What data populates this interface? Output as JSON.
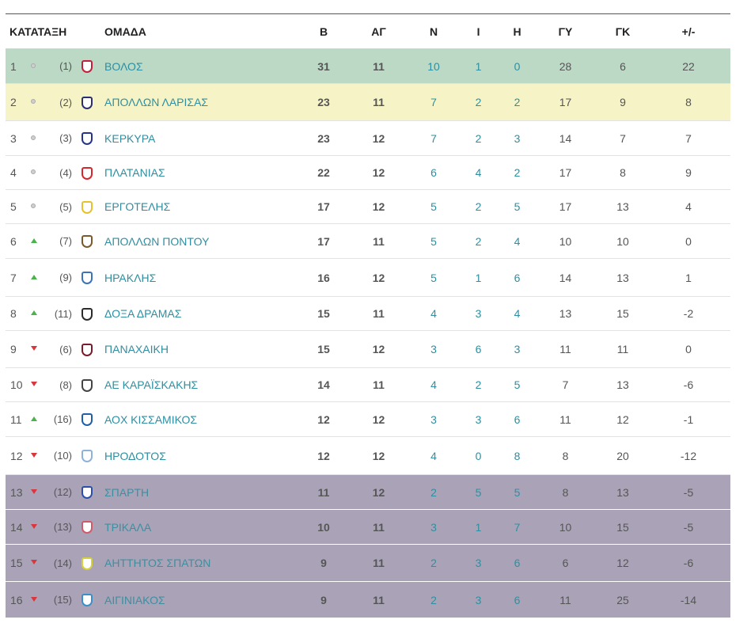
{
  "headers": {
    "rank": "ΚΑΤΑΤΑΞΗ",
    "team": "ΟΜΑΔΑ",
    "points": "Β",
    "played": "ΑΓ",
    "wins": "Ν",
    "draws": "Ι",
    "losses": "Η",
    "goals_for": "ΓΥ",
    "goals_against": "ΓΚ",
    "goal_diff": "+/-"
  },
  "rows": [
    {
      "pos": "1",
      "move": "same",
      "prev": "(1)",
      "crest": "#c21f3a",
      "team": "ΒΟΛΟΣ",
      "pts": "31",
      "pl": "11",
      "w": "10",
      "d": "1",
      "l": "0",
      "gf": "28",
      "ga": "6",
      "gd": "22",
      "zone": "promo"
    },
    {
      "pos": "2",
      "move": "same",
      "prev": "(2)",
      "crest": "#2a2f6e",
      "team": "ΑΠΟΛΛΩΝ ΛΑΡΙΣΑΣ",
      "pts": "23",
      "pl": "11",
      "w": "7",
      "d": "2",
      "l": "2",
      "gf": "17",
      "ga": "9",
      "gd": "8",
      "zone": "second"
    },
    {
      "pos": "3",
      "move": "same",
      "prev": "(3)",
      "crest": "#26338c",
      "team": "ΚΕΡΚΥΡΑ",
      "pts": "23",
      "pl": "12",
      "w": "7",
      "d": "2",
      "l": "3",
      "gf": "14",
      "ga": "7",
      "gd": "7",
      "zone": "none"
    },
    {
      "pos": "4",
      "move": "same",
      "prev": "(4)",
      "crest": "#d8262e",
      "team": "ΠΛΑΤΑΝΙΑΣ",
      "pts": "22",
      "pl": "12",
      "w": "6",
      "d": "4",
      "l": "2",
      "gf": "17",
      "ga": "8",
      "gd": "9",
      "zone": "none"
    },
    {
      "pos": "5",
      "move": "same",
      "prev": "(5)",
      "crest": "#e6c22a",
      "team": "ΕΡΓΟΤΕΛΗΣ",
      "pts": "17",
      "pl": "12",
      "w": "5",
      "d": "2",
      "l": "5",
      "gf": "17",
      "ga": "13",
      "gd": "4",
      "zone": "none"
    },
    {
      "pos": "6",
      "move": "up",
      "prev": "(7)",
      "crest": "#7a5a2a",
      "team": "ΑΠΟΛΛΩΝ ΠΟΝΤΟΥ",
      "pts": "17",
      "pl": "11",
      "w": "5",
      "d": "2",
      "l": "4",
      "gf": "10",
      "ga": "10",
      "gd": "0",
      "zone": "none"
    },
    {
      "pos": "7",
      "move": "up",
      "prev": "(9)",
      "crest": "#3a73b8",
      "team": "ΗΡΑΚΛΗΣ",
      "pts": "16",
      "pl": "12",
      "w": "5",
      "d": "1",
      "l": "6",
      "gf": "14",
      "ga": "13",
      "gd": "1",
      "zone": "none"
    },
    {
      "pos": "8",
      "move": "up",
      "prev": "(11)",
      "crest": "#2b2b2b",
      "team": "ΔΟΞΑ ΔΡΑΜΑΣ",
      "pts": "15",
      "pl": "11",
      "w": "4",
      "d": "3",
      "l": "4",
      "gf": "13",
      "ga": "15",
      "gd": "-2",
      "zone": "none"
    },
    {
      "pos": "9",
      "move": "down",
      "prev": "(6)",
      "crest": "#7a1a2a",
      "team": "ΠΑΝΑΧΑΙΚΗ",
      "pts": "15",
      "pl": "12",
      "w": "3",
      "d": "6",
      "l": "3",
      "gf": "11",
      "ga": "11",
      "gd": "0",
      "zone": "none"
    },
    {
      "pos": "10",
      "move": "down",
      "prev": "(8)",
      "crest": "#444444",
      "team": "ΑΕ ΚΑΡΑΪΣΚΑΚΗΣ",
      "pts": "14",
      "pl": "11",
      "w": "4",
      "d": "2",
      "l": "5",
      "gf": "7",
      "ga": "13",
      "gd": "-6",
      "zone": "none"
    },
    {
      "pos": "11",
      "move": "up",
      "prev": "(16)",
      "crest": "#1f5fa8",
      "team": "ΑΟΧ ΚΙΣΣΑΜΙΚΟΣ",
      "pts": "12",
      "pl": "12",
      "w": "3",
      "d": "3",
      "l": "6",
      "gf": "11",
      "ga": "12",
      "gd": "-1",
      "zone": "none"
    },
    {
      "pos": "12",
      "move": "down",
      "prev": "(10)",
      "crest": "#8fb2d8",
      "team": "ΗΡΟΔΟΤΟΣ",
      "pts": "12",
      "pl": "12",
      "w": "4",
      "d": "0",
      "l": "8",
      "gf": "8",
      "ga": "20",
      "gd": "-12",
      "zone": "none"
    },
    {
      "pos": "13",
      "move": "down",
      "prev": "(12)",
      "crest": "#2b4fa8",
      "team": "ΣΠΑΡΤΗ",
      "pts": "11",
      "pl": "12",
      "w": "2",
      "d": "5",
      "l": "5",
      "gf": "8",
      "ga": "13",
      "gd": "-5",
      "zone": "releg"
    },
    {
      "pos": "14",
      "move": "down",
      "prev": "(13)",
      "crest": "#d05a6a",
      "team": "ΤΡΙΚΑΛΑ",
      "pts": "10",
      "pl": "11",
      "w": "3",
      "d": "1",
      "l": "7",
      "gf": "10",
      "ga": "15",
      "gd": "-5",
      "zone": "releg"
    },
    {
      "pos": "15",
      "move": "down",
      "prev": "(14)",
      "crest": "#d6d23a",
      "team": "ΑΗΤΤΗΤΟΣ ΣΠΑΤΩΝ",
      "pts": "9",
      "pl": "11",
      "w": "2",
      "d": "3",
      "l": "6",
      "gf": "6",
      "ga": "12",
      "gd": "-6",
      "zone": "releg"
    },
    {
      "pos": "16",
      "move": "down",
      "prev": "(15)",
      "crest": "#3a8fc8",
      "team": "ΑΙΓΙΝΙΑΚΟΣ",
      "pts": "9",
      "pl": "11",
      "w": "2",
      "d": "3",
      "l": "6",
      "gf": "11",
      "ga": "25",
      "gd": "-14",
      "zone": "releg"
    }
  ]
}
